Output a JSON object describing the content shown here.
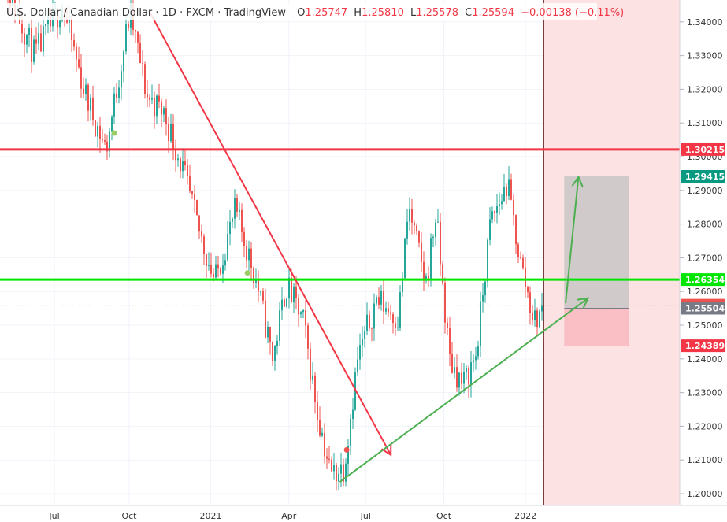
{
  "header": {
    "title": "U.S. Dollar / Canadian Dollar · 1D · FXCM · TradingView",
    "o_label": "O",
    "o_value": "1.25747",
    "h_label": "H",
    "h_value": "1.25810",
    "l_label": "L",
    "l_value": "1.25578",
    "c_label": "C",
    "c_value": "1.25594",
    "change": "−0.00138 (−0.11%)"
  },
  "colors": {
    "up": "#26a69a",
    "down": "#ef5350",
    "resistance": "#f23645",
    "support": "#00e600",
    "trend_up": "#4caf50",
    "trend_down": "#f23645",
    "target": "#089981",
    "stop": "#f23645",
    "current": "#787b86",
    "future_zone": "#fde2e4"
  },
  "chart_data": {
    "type": "candlestick",
    "instrument": "USD/CAD",
    "ylim": [
      1.1965,
      1.3465
    ],
    "y_ticks": [
      "1.20000",
      "1.21000",
      "1.22000",
      "1.23000",
      "1.24000",
      "1.25000",
      "1.26000",
      "1.27000",
      "1.28000",
      "1.29000",
      "1.30000",
      "1.31000",
      "1.32000",
      "1.33000",
      "1.34000"
    ],
    "x_ticks": [
      {
        "label": "Jul",
        "t": 0.08
      },
      {
        "label": "Oct",
        "t": 0.19
      },
      {
        "label": "2021",
        "t": 0.31
      },
      {
        "label": "Apr",
        "t": 0.425
      },
      {
        "label": "Jul",
        "t": 0.538
      },
      {
        "label": "Oct",
        "t": 0.653
      },
      {
        "label": "2022",
        "t": 0.773
      }
    ],
    "path": [
      {
        "t": 0.0,
        "v": 1.355
      },
      {
        "t": 0.05,
        "v": 1.33
      },
      {
        "t": 0.09,
        "v": 1.345
      },
      {
        "t": 0.125,
        "v": 1.318
      },
      {
        "t": 0.155,
        "v": 1.302
      },
      {
        "t": 0.19,
        "v": 1.343
      },
      {
        "t": 0.215,
        "v": 1.318
      },
      {
        "t": 0.24,
        "v": 1.313
      },
      {
        "t": 0.265,
        "v": 1.298
      },
      {
        "t": 0.29,
        "v": 1.279
      },
      {
        "t": 0.315,
        "v": 1.263
      },
      {
        "t": 0.345,
        "v": 1.284
      },
      {
        "t": 0.375,
        "v": 1.264
      },
      {
        "t": 0.4,
        "v": 1.24
      },
      {
        "t": 0.42,
        "v": 1.262
      },
      {
        "t": 0.445,
        "v": 1.251
      },
      {
        "t": 0.465,
        "v": 1.225
      },
      {
        "t": 0.485,
        "v": 1.206
      },
      {
        "t": 0.505,
        "v": 1.208
      },
      {
        "t": 0.525,
        "v": 1.24
      },
      {
        "t": 0.553,
        "v": 1.258
      },
      {
        "t": 0.585,
        "v": 1.252
      },
      {
        "t": 0.6,
        "v": 1.285
      },
      {
        "t": 0.625,
        "v": 1.262
      },
      {
        "t": 0.64,
        "v": 1.283
      },
      {
        "t": 0.66,
        "v": 1.24
      },
      {
        "t": 0.68,
        "v": 1.232
      },
      {
        "t": 0.7,
        "v": 1.242
      },
      {
        "t": 0.72,
        "v": 1.28
      },
      {
        "t": 0.745,
        "v": 1.292
      },
      {
        "t": 0.765,
        "v": 1.268
      },
      {
        "t": 0.785,
        "v": 1.251
      },
      {
        "t": 0.8,
        "v": 1.256
      }
    ],
    "future_zone_start_t": 0.8,
    "lines": {
      "resistance": {
        "value": 1.30215,
        "label": "1.30215"
      },
      "support": {
        "value": 1.26354,
        "label": "1.26354"
      },
      "last_price": {
        "value": 1.25594,
        "label": "1.25594"
      }
    },
    "position": {
      "target": {
        "value": 1.29415,
        "label": "1.29415"
      },
      "entry": {
        "value": 1.25504,
        "label": "1.25504"
      },
      "stop": {
        "value": 1.24389,
        "label": "1.24389"
      },
      "t_start": 0.83,
      "t_end": 0.925
    },
    "trendlines": [
      {
        "name": "downtrend",
        "points": [
          {
            "t": 0.22,
            "v": 1.343
          },
          {
            "t": 0.575,
            "v": 1.2115
          }
        ]
      },
      {
        "name": "uptrend",
        "points": [
          {
            "t": 0.5,
            "v": 1.2035
          },
          {
            "t": 0.865,
            "v": 1.258
          }
        ]
      },
      {
        "name": "projection",
        "points": [
          {
            "t": 0.832,
            "v": 1.2565
          },
          {
            "t": 0.851,
            "v": 1.294
          }
        ]
      }
    ],
    "markers": [
      {
        "t": 0.168,
        "v": 1.307,
        "color": "#9ccc65"
      },
      {
        "t": 0.364,
        "v": 1.2655,
        "color": "#9ccc65"
      },
      {
        "t": 0.51,
        "v": 1.213,
        "color": "#ef5350"
      }
    ]
  }
}
